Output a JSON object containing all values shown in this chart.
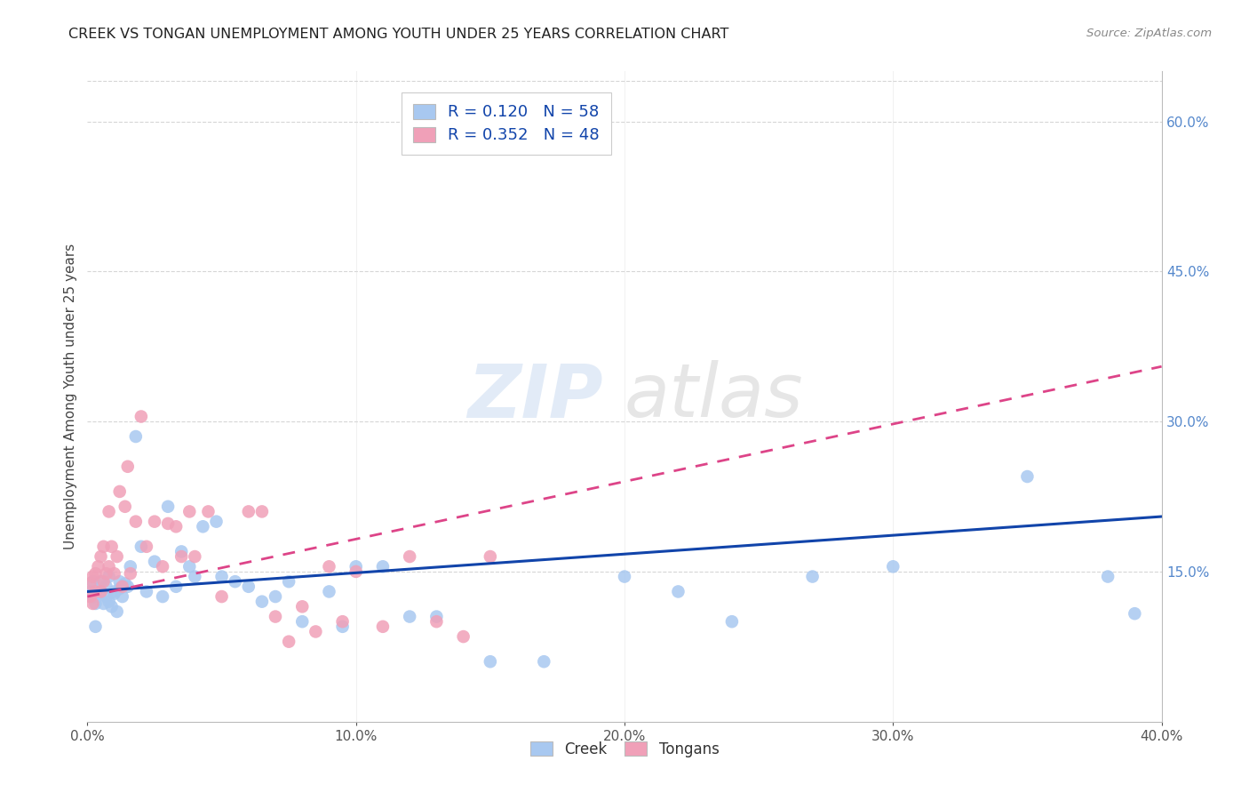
{
  "title": "CREEK VS TONGAN UNEMPLOYMENT AMONG YOUTH UNDER 25 YEARS CORRELATION CHART",
  "source": "Source: ZipAtlas.com",
  "ylabel": "Unemployment Among Youth under 25 years",
  "xmin": 0.0,
  "xmax": 0.4,
  "ymin": 0.0,
  "ymax": 0.65,
  "xticks": [
    0.0,
    0.1,
    0.2,
    0.3,
    0.4
  ],
  "xtick_labels": [
    "0.0%",
    "10.0%",
    "20.0%",
    "30.0%",
    "40.0%"
  ],
  "yticks_right": [
    0.15,
    0.3,
    0.45,
    0.6
  ],
  "ytick_labels_right": [
    "15.0%",
    "30.0%",
    "45.0%",
    "60.0%"
  ],
  "creek_color": "#A8C8F0",
  "tongan_color": "#F0A0B8",
  "creek_line_color": "#1144AA",
  "tongan_line_color": "#DD4488",
  "creek_R": 0.12,
  "creek_N": 58,
  "tongan_R": 0.352,
  "tongan_N": 48,
  "watermark": "ZIPatlas",
  "background_color": "#FFFFFF",
  "creek_x": [
    0.001,
    0.002,
    0.002,
    0.003,
    0.003,
    0.004,
    0.005,
    0.005,
    0.006,
    0.007,
    0.007,
    0.008,
    0.008,
    0.009,
    0.01,
    0.01,
    0.011,
    0.012,
    0.012,
    0.013,
    0.014,
    0.015,
    0.016,
    0.018,
    0.02,
    0.022,
    0.025,
    0.028,
    0.03,
    0.033,
    0.035,
    0.038,
    0.04,
    0.043,
    0.048,
    0.05,
    0.055,
    0.06,
    0.065,
    0.07,
    0.075,
    0.08,
    0.09,
    0.095,
    0.1,
    0.11,
    0.12,
    0.13,
    0.15,
    0.17,
    0.2,
    0.22,
    0.24,
    0.27,
    0.3,
    0.35,
    0.38,
    0.39
  ],
  "creek_y": [
    0.13,
    0.125,
    0.14,
    0.118,
    0.095,
    0.128,
    0.13,
    0.14,
    0.118,
    0.125,
    0.135,
    0.12,
    0.145,
    0.115,
    0.13,
    0.128,
    0.11,
    0.14,
    0.133,
    0.125,
    0.138,
    0.135,
    0.155,
    0.285,
    0.175,
    0.13,
    0.16,
    0.125,
    0.215,
    0.135,
    0.17,
    0.155,
    0.145,
    0.195,
    0.2,
    0.145,
    0.14,
    0.135,
    0.12,
    0.125,
    0.14,
    0.1,
    0.13,
    0.095,
    0.155,
    0.155,
    0.105,
    0.105,
    0.06,
    0.06,
    0.145,
    0.13,
    0.1,
    0.145,
    0.155,
    0.245,
    0.145,
    0.108
  ],
  "tongan_x": [
    0.001,
    0.001,
    0.002,
    0.002,
    0.003,
    0.003,
    0.004,
    0.005,
    0.005,
    0.006,
    0.006,
    0.007,
    0.008,
    0.008,
    0.009,
    0.01,
    0.011,
    0.012,
    0.013,
    0.014,
    0.015,
    0.016,
    0.018,
    0.02,
    0.022,
    0.025,
    0.028,
    0.03,
    0.033,
    0.035,
    0.038,
    0.04,
    0.045,
    0.05,
    0.06,
    0.065,
    0.07,
    0.075,
    0.08,
    0.085,
    0.09,
    0.095,
    0.1,
    0.11,
    0.12,
    0.13,
    0.14,
    0.15
  ],
  "tongan_y": [
    0.138,
    0.125,
    0.145,
    0.118,
    0.148,
    0.13,
    0.155,
    0.165,
    0.13,
    0.14,
    0.175,
    0.148,
    0.155,
    0.21,
    0.175,
    0.148,
    0.165,
    0.23,
    0.135,
    0.215,
    0.255,
    0.148,
    0.2,
    0.305,
    0.175,
    0.2,
    0.155,
    0.198,
    0.195,
    0.165,
    0.21,
    0.165,
    0.21,
    0.125,
    0.21,
    0.21,
    0.105,
    0.08,
    0.115,
    0.09,
    0.155,
    0.1,
    0.15,
    0.095,
    0.165,
    0.1,
    0.085,
    0.165
  ]
}
